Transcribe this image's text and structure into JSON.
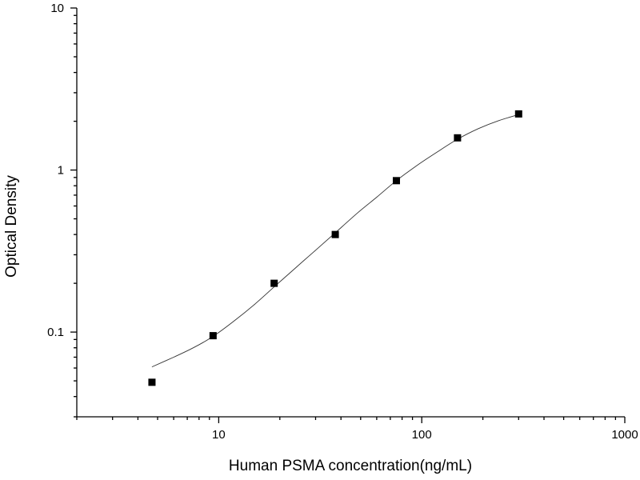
{
  "chart_data": {
    "type": "scatter",
    "xlabel": "Human PSMA concentration(ng/mL)",
    "ylabel": "Optical Density",
    "xscale": "log",
    "yscale": "log",
    "xlim": [
      2,
      1000
    ],
    "ylim": [
      0.03,
      10
    ],
    "x_major_ticks": [
      10,
      100,
      1000
    ],
    "x_tick_labels": [
      "10",
      "100",
      "1000"
    ],
    "y_major_ticks": [
      0.1,
      1,
      10
    ],
    "y_tick_labels": [
      "0.1",
      "1",
      "10"
    ],
    "grid": false,
    "legend": "none",
    "series": [
      {
        "marker": "square",
        "x": [
          4.69,
          9.38,
          18.75,
          37.5,
          75,
          150,
          300
        ],
        "y": [
          0.049,
          0.095,
          0.2,
          0.4,
          0.86,
          1.58,
          2.22
        ]
      }
    ],
    "fit_curve": {
      "x": [
        4.69,
        6,
        7.5,
        9.38,
        12,
        15,
        18.75,
        24,
        30,
        37.5,
        48,
        60,
        75,
        95,
        120,
        150,
        190,
        240,
        300
      ],
      "y": [
        0.061,
        0.07,
        0.08,
        0.094,
        0.118,
        0.148,
        0.19,
        0.25,
        0.32,
        0.41,
        0.54,
        0.68,
        0.86,
        1.07,
        1.3,
        1.55,
        1.8,
        2.02,
        2.2
      ]
    },
    "colors": {
      "marker": "#000000",
      "curve": "#333333",
      "axes": "#000000"
    }
  }
}
